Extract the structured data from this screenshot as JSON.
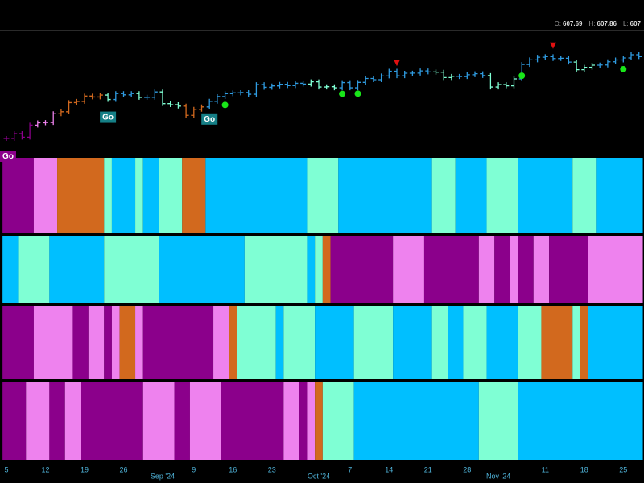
{
  "chart_data": {
    "type": "ohlc-heatmap",
    "header": [
      {
        "label": "O:",
        "value": 607.69
      },
      {
        "label": "H:",
        "value": 607.86
      },
      {
        "label": "L:",
        "value": 607
      }
    ],
    "categories": [
      "5",
      null,
      null,
      null,
      null,
      "12",
      null,
      null,
      null,
      null,
      "19",
      null,
      null,
      null,
      null,
      "26",
      null,
      null,
      null,
      null,
      "Sep '24",
      null,
      null,
      null,
      "9",
      null,
      null,
      null,
      null,
      "16",
      null,
      null,
      null,
      null,
      "23",
      null,
      null,
      null,
      null,
      null,
      "Oct '24",
      null,
      null,
      null,
      "7",
      null,
      null,
      null,
      null,
      "14",
      null,
      null,
      null,
      null,
      "21",
      null,
      null,
      null,
      null,
      "28",
      null,
      null,
      null,
      "Nov '24",
      null,
      null,
      null,
      null,
      null,
      "11",
      null,
      null,
      null,
      null,
      "18",
      null,
      null,
      null,
      null,
      "25",
      null,
      null
    ],
    "values": [
      517.4,
      522.2,
      518.7,
      530.7,
      533.0,
      533.3,
      542.0,
      544.0,
      553.1,
      554.3,
      559.6,
      558.7,
      560.6,
      556.2,
      562.1,
      560.8,
      562.1,
      558.3,
      558.4,
      563.7,
      552.1,
      551.0,
      549.6,
      540.4,
      546.4,
      548.8,
      554.4,
      559.1,
      562.0,
      562.8,
      563.1,
      561.4,
      571.0,
      568.3,
      569.7,
      571.3,
      570.0,
      572.3,
      571.5,
      573.8,
      568.6,
      568.9,
      567.8,
      573.0,
      567.8,
      573.2,
      577.1,
      575.9,
      579.6,
      584.3,
      579.8,
      582.3,
      582.4,
      584.6,
      583.6,
      583.3,
      578.0,
      579.2,
      579.0,
      580.8,
      581.8,
      580.0,
      568.6,
      571.0,
      569.8,
      576.7,
      591.0,
      595.6,
      598.2,
      598.8,
      596.9,
      597.2,
      593.4,
      585.8,
      588.2,
      590.3,
      590.5,
      593.7,
      595.5,
      597.5,
      600.7,
      598.8
    ],
    "go_labels": [
      {
        "text": "Go",
        "index": 0,
        "color": "#8b008b"
      },
      {
        "text": "Go",
        "index": 13,
        "color": "#157f86"
      },
      {
        "text": "Go",
        "index": 26,
        "color": "#157f86"
      }
    ],
    "dots": {
      "color": "#19e619",
      "indices": [
        28,
        43,
        45,
        66,
        79
      ]
    },
    "triangles": {
      "color": "#e01010",
      "indices": [
        50,
        70
      ]
    },
    "rows": [
      {
        "segments": [
          {
            "days": 4,
            "color": "#8b008b"
          },
          {
            "days": 3,
            "color": "#ee82ee"
          },
          {
            "days": 6,
            "color": "#d2691e"
          },
          {
            "days": 1,
            "color": "#7fffd4"
          },
          {
            "days": 3,
            "color": "#00bfff"
          },
          {
            "days": 1,
            "color": "#7fffd4"
          },
          {
            "days": 2,
            "color": "#00bfff"
          },
          {
            "days": 3,
            "color": "#7fffd4"
          },
          {
            "days": 3,
            "color": "#d2691e"
          },
          {
            "days": 13,
            "color": "#00bfff"
          },
          {
            "days": 4,
            "color": "#7fffd4"
          },
          {
            "days": 12,
            "color": "#00bfff"
          },
          {
            "days": 3,
            "color": "#7fffd4"
          },
          {
            "days": 4,
            "color": "#00bfff"
          },
          {
            "days": 4,
            "color": "#7fffd4"
          },
          {
            "days": 7,
            "color": "#00bfff"
          },
          {
            "days": 3,
            "color": "#7fffd4"
          },
          {
            "days": 6,
            "color": "#00bfff"
          }
        ]
      },
      {
        "segments": [
          {
            "days": 2,
            "color": "#00bfff"
          },
          {
            "days": 4,
            "color": "#7fffd4"
          },
          {
            "days": 7,
            "color": "#00bfff"
          },
          {
            "days": 7,
            "color": "#7fffd4"
          },
          {
            "days": 11,
            "color": "#00bfff"
          },
          {
            "days": 8,
            "color": "#7fffd4"
          },
          {
            "days": 1,
            "color": "#00bfff"
          },
          {
            "days": 1,
            "color": "#7fffd4"
          },
          {
            "days": 1,
            "color": "#d2691e"
          },
          {
            "days": 8,
            "color": "#8b008b"
          },
          {
            "days": 4,
            "color": "#ee82ee"
          },
          {
            "days": 7,
            "color": "#8b008b"
          },
          {
            "days": 2,
            "color": "#ee82ee"
          },
          {
            "days": 2,
            "color": "#8b008b"
          },
          {
            "days": 1,
            "color": "#ee82ee"
          },
          {
            "days": 2,
            "color": "#8b008b"
          },
          {
            "days": 2,
            "color": "#ee82ee"
          },
          {
            "days": 5,
            "color": "#8b008b"
          },
          {
            "days": 7,
            "color": "#ee82ee"
          }
        ]
      },
      {
        "segments": [
          {
            "days": 4,
            "color": "#8b008b"
          },
          {
            "days": 5,
            "color": "#ee82ee"
          },
          {
            "days": 2,
            "color": "#8b008b"
          },
          {
            "days": 2,
            "color": "#ee82ee"
          },
          {
            "days": 1,
            "color": "#8b008b"
          },
          {
            "days": 1,
            "color": "#ee82ee"
          },
          {
            "days": 2,
            "color": "#d2691e"
          },
          {
            "days": 1,
            "color": "#ee82ee"
          },
          {
            "days": 9,
            "color": "#8b008b"
          },
          {
            "days": 2,
            "color": "#ee82ee"
          },
          {
            "days": 1,
            "color": "#d2691e"
          },
          {
            "days": 5,
            "color": "#7fffd4"
          },
          {
            "days": 1,
            "color": "#00bfff"
          },
          {
            "days": 4,
            "color": "#7fffd4"
          },
          {
            "days": 5,
            "color": "#00bfff"
          },
          {
            "days": 5,
            "color": "#7fffd4"
          },
          {
            "days": 5,
            "color": "#00bfff"
          },
          {
            "days": 2,
            "color": "#7fffd4"
          },
          {
            "days": 2,
            "color": "#00bfff"
          },
          {
            "days": 3,
            "color": "#7fffd4"
          },
          {
            "days": 4,
            "color": "#00bfff"
          },
          {
            "days": 3,
            "color": "#7fffd4"
          },
          {
            "days": 4,
            "color": "#d2691e"
          },
          {
            "days": 1,
            "color": "#7fffd4"
          },
          {
            "days": 1,
            "color": "#d2691e"
          },
          {
            "days": 7,
            "color": "#00bfff"
          }
        ]
      },
      {
        "segments": [
          {
            "days": 3,
            "color": "#8b008b"
          },
          {
            "days": 3,
            "color": "#ee82ee"
          },
          {
            "days": 2,
            "color": "#8b008b"
          },
          {
            "days": 2,
            "color": "#ee82ee"
          },
          {
            "days": 8,
            "color": "#8b008b"
          },
          {
            "days": 4,
            "color": "#ee82ee"
          },
          {
            "days": 2,
            "color": "#8b008b"
          },
          {
            "days": 4,
            "color": "#ee82ee"
          },
          {
            "days": 8,
            "color": "#8b008b"
          },
          {
            "days": 2,
            "color": "#ee82ee"
          },
          {
            "days": 1,
            "color": "#8b008b"
          },
          {
            "days": 1,
            "color": "#ee82ee"
          },
          {
            "days": 1,
            "color": "#d2691e"
          },
          {
            "days": 4,
            "color": "#7fffd4"
          },
          {
            "days": 16,
            "color": "#00bfff"
          },
          {
            "days": 5,
            "color": "#7fffd4"
          },
          {
            "days": 16,
            "color": "#00bfff"
          }
        ]
      }
    ]
  }
}
